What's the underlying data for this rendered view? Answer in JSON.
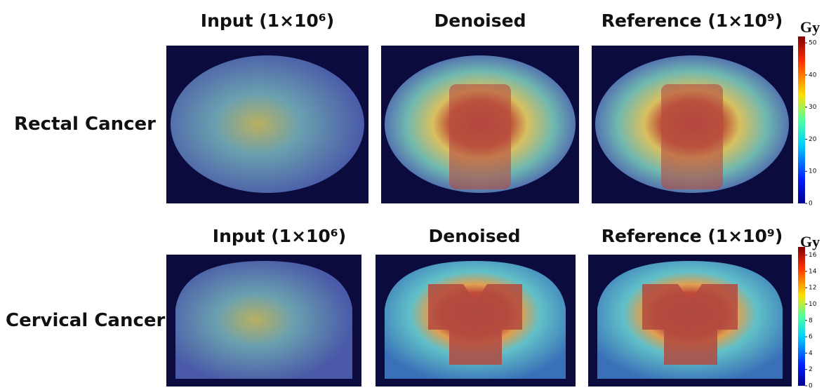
{
  "columns": [
    "Input (1×10⁶)",
    "Denoised",
    "Reference (1×10⁹)"
  ],
  "rows": [
    {
      "label": "Rectal Cancer",
      "colorbar": {
        "unit": "Gy",
        "range": [
          0,
          52
        ],
        "ticks": [
          0,
          10,
          20,
          30,
          40,
          50
        ]
      }
    },
    {
      "label": "Cervical Cancer",
      "colorbar": {
        "unit": "Gy",
        "range": [
          0,
          17
        ],
        "ticks": [
          0,
          2,
          4,
          6,
          8,
          10,
          12,
          14,
          16
        ]
      }
    }
  ]
}
